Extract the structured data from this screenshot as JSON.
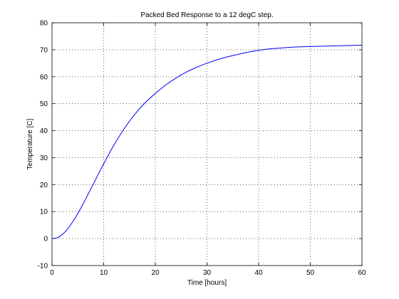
{
  "chart_data": {
    "type": "line",
    "title": "Packed Bed Response to a 12 degC step.",
    "xlabel": "Time [hours]",
    "ylabel": "Temperature [C]",
    "xlim": [
      0,
      60
    ],
    "ylim": [
      -10,
      80
    ],
    "xticks": [
      0,
      10,
      20,
      30,
      40,
      50,
      60
    ],
    "yticks": [
      -10,
      0,
      10,
      20,
      30,
      40,
      50,
      60,
      70,
      80
    ],
    "grid": true,
    "grid_style": "dotted",
    "legend": "none",
    "line_color": "#0000ff",
    "series": [
      {
        "x": [
          0,
          1,
          2,
          3,
          4,
          5,
          6,
          7,
          8,
          9,
          10,
          12,
          14,
          16,
          18,
          20,
          22,
          24,
          26,
          28,
          30,
          32,
          34,
          36,
          38,
          40,
          42,
          44,
          46,
          48,
          50,
          52,
          54,
          56,
          58,
          60
        ],
        "values": [
          0,
          0.3,
          1.5,
          3.5,
          6.2,
          9.3,
          12.8,
          16.5,
          20.2,
          24.0,
          27.7,
          34.7,
          40.8,
          46.0,
          50.3,
          53.8,
          56.9,
          59.5,
          61.7,
          63.5,
          65.0,
          66.3,
          67.4,
          68.3,
          69.1,
          69.8,
          70.3,
          70.6,
          70.9,
          71.1,
          71.2,
          71.3,
          71.4,
          71.5,
          71.6,
          71.7
        ]
      }
    ]
  }
}
